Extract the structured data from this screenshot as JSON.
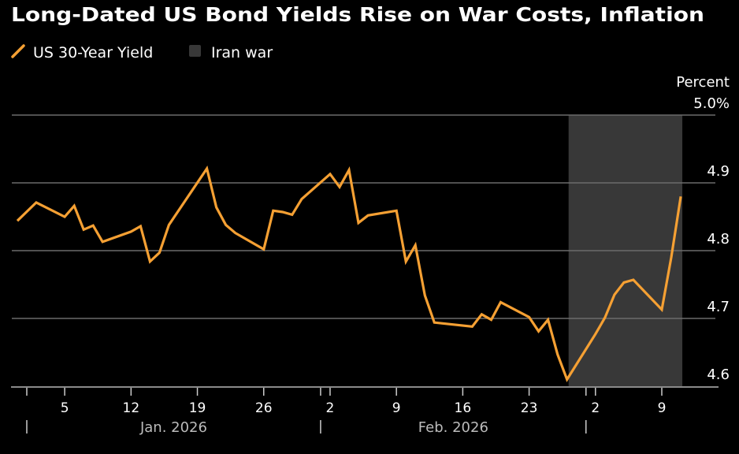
{
  "chart_data": {
    "type": "line",
    "title": "Long-Dated US Bond Yields Rise on War Costs, Inflation",
    "ylabel": "Percent",
    "ylim": [
      4.6,
      5.0
    ],
    "yticks": [
      {
        "value": 5.0,
        "label": "5.0%"
      },
      {
        "value": 4.9,
        "label": "4.9"
      },
      {
        "value": 4.8,
        "label": "4.8"
      },
      {
        "value": 4.7,
        "label": "4.7"
      },
      {
        "value": 4.6,
        "label": "4.6"
      }
    ],
    "xlim": [
      "2025-12-31",
      "2026-03-11"
    ],
    "xticks": [
      {
        "date": "2026-01-05",
        "label": "5"
      },
      {
        "date": "2026-01-12",
        "label": "12"
      },
      {
        "date": "2026-01-19",
        "label": "19"
      },
      {
        "date": "2026-01-26",
        "label": "26"
      },
      {
        "date": "2026-02-02",
        "label": "2"
      },
      {
        "date": "2026-02-09",
        "label": "9"
      },
      {
        "date": "2026-02-16",
        "label": "16"
      },
      {
        "date": "2026-02-23",
        "label": "23"
      },
      {
        "date": "2026-03-02",
        "label": "2"
      },
      {
        "date": "2026-03-09",
        "label": "9"
      }
    ],
    "months": [
      {
        "start": "2026-01-01",
        "label": "Jan. 2026"
      },
      {
        "start": "2026-02-01",
        "label": "Feb. 2026"
      },
      {
        "start": "2026-03-01",
        "label": ""
      }
    ],
    "grid": true,
    "legend_placement": "top-left",
    "legend": [
      {
        "label": "US 30-Year Yield",
        "kind": "line",
        "color": "#f5a033"
      },
      {
        "label": "Iran war",
        "kind": "box",
        "color": "#383838"
      }
    ],
    "shaded_regions": [
      {
        "name": "Iran war",
        "start": "2026-02-27",
        "end": "2026-03-11",
        "color": "#383838"
      }
    ],
    "series": [
      {
        "name": "US 30-Year Yield",
        "color": "#f5a033",
        "points": [
          [
            "2025-12-31",
            4.844
          ],
          [
            "2026-01-02",
            4.871
          ],
          [
            "2026-01-05",
            4.85
          ],
          [
            "2026-01-06",
            4.866
          ],
          [
            "2026-01-07",
            4.831
          ],
          [
            "2026-01-08",
            4.837
          ],
          [
            "2026-01-09",
            4.813
          ],
          [
            "2026-01-12",
            4.828
          ],
          [
            "2026-01-13",
            4.836
          ],
          [
            "2026-01-14",
            4.784
          ],
          [
            "2026-01-15",
            4.797
          ],
          [
            "2026-01-16",
            4.838
          ],
          [
            "2026-01-20",
            4.921
          ],
          [
            "2026-01-21",
            4.864
          ],
          [
            "2026-01-22",
            4.838
          ],
          [
            "2026-01-23",
            4.826
          ],
          [
            "2026-01-26",
            4.802
          ],
          [
            "2026-01-27",
            4.859
          ],
          [
            "2026-01-28",
            4.857
          ],
          [
            "2026-01-29",
            4.853
          ],
          [
            "2026-01-30",
            4.876
          ],
          [
            "2026-02-02",
            4.913
          ],
          [
            "2026-02-03",
            4.894
          ],
          [
            "2026-02-04",
            4.919
          ],
          [
            "2026-02-05",
            4.841
          ],
          [
            "2026-02-06",
            4.852
          ],
          [
            "2026-02-09",
            4.859
          ],
          [
            "2026-02-10",
            4.784
          ],
          [
            "2026-02-11",
            4.808
          ],
          [
            "2026-02-12",
            4.734
          ],
          [
            "2026-02-13",
            4.694
          ],
          [
            "2026-02-17",
            4.688
          ],
          [
            "2026-02-18",
            4.706
          ],
          [
            "2026-02-19",
            4.698
          ],
          [
            "2026-02-20",
            4.724
          ],
          [
            "2026-02-23",
            4.702
          ],
          [
            "2026-02-24",
            4.681
          ],
          [
            "2026-02-25",
            4.698
          ],
          [
            "2026-02-26",
            4.647
          ],
          [
            "2026-02-27",
            4.61
          ],
          [
            "2026-03-02",
            4.677
          ],
          [
            "2026-03-03",
            4.701
          ],
          [
            "2026-03-04",
            4.735
          ],
          [
            "2026-03-05",
            4.753
          ],
          [
            "2026-03-06",
            4.757
          ],
          [
            "2026-03-09",
            4.713
          ],
          [
            "2026-03-10",
            4.79
          ],
          [
            "2026-03-11",
            4.88
          ]
        ]
      }
    ]
  }
}
